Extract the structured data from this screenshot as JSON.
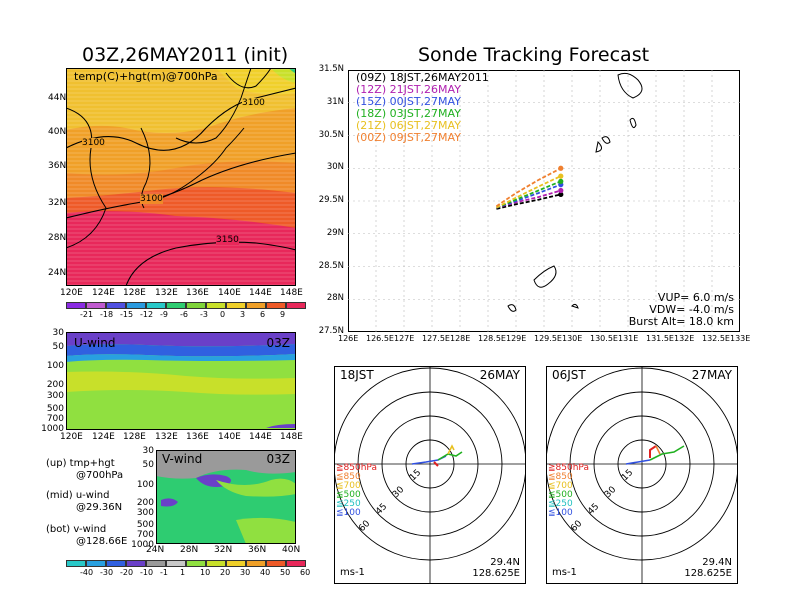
{
  "left_title": "03Z,26MAY2011 (init)",
  "right_title": "Sonde Tracking Forecast",
  "map_panel": {
    "label": "temp(C)+hgt(m)@700hPa",
    "contour_labels": [
      "3100",
      "3100",
      "3100",
      "3150"
    ],
    "lat_ticks": [
      "44N",
      "40N",
      "36N",
      "32N",
      "28N",
      "24N"
    ],
    "lon_ticks": [
      "120E",
      "124E",
      "128E",
      "132E",
      "136E",
      "140E",
      "144E",
      "148E"
    ],
    "colorbar": [
      "-21",
      "-18",
      "-15",
      "-12",
      "-9",
      "-6",
      "-3",
      "0",
      "3",
      "6",
      "9"
    ],
    "colorbar_colors": [
      "#8a2be2",
      "#c05ad0",
      "#5050e0",
      "#2a9adf",
      "#28c8c8",
      "#2ecc71",
      "#7fd43a",
      "#c8e02a",
      "#f0d02a",
      "#f0a028",
      "#ee5a28",
      "#e8285a"
    ]
  },
  "uwind_panel": {
    "label": "U-wind",
    "time": "03Z",
    "pressure_ticks": [
      "30",
      "50",
      "100",
      "200",
      "300",
      "500",
      "700",
      "1000"
    ],
    "lon_ticks": [
      "120E",
      "124E",
      "128E",
      "132E",
      "136E",
      "140E",
      "144E",
      "148E"
    ]
  },
  "vwind_panel": {
    "label": "V-wind",
    "time": "03Z",
    "pressure_ticks": [
      "30",
      "50",
      "100",
      "200",
      "300",
      "500",
      "700",
      "1000"
    ],
    "lat_ticks": [
      "24N",
      "28N",
      "32N",
      "36N",
      "40N"
    ]
  },
  "legend_notes": [
    {
      "line1": "(up) tmp+hgt",
      "line2": "@700hPa"
    },
    {
      "line1": "(mid) u-wind",
      "line2": "@29.36N"
    },
    {
      "line1": "(bot) v-wind",
      "line2": "@128.66E"
    }
  ],
  "wind_colorbar": [
    "-40",
    "-30",
    "-20",
    "-10",
    "-1",
    "1",
    "10",
    "20",
    "30",
    "40",
    "50",
    "60"
  ],
  "wind_colorbar_colors": [
    "#28c8c8",
    "#28a0e0",
    "#3060e0",
    "#6a40c8",
    "#9a9a9a",
    "#c8c8c8",
    "#90e040",
    "#c8e02a",
    "#f0d02a",
    "#f0a028",
    "#ee5a28",
    "#e8285a"
  ],
  "track_panel": {
    "lat_ticks": [
      "31.5N",
      "31N",
      "30.5N",
      "30N",
      "29.5N",
      "29N",
      "28.5N",
      "28N",
      "27.5N"
    ],
    "lon_ticks": [
      "126E",
      "126.5E",
      "127E",
      "127.5E",
      "128E",
      "128.5E",
      "129E",
      "129.5E",
      "130E",
      "130.5E",
      "131E",
      "131.5E",
      "132E",
      "132.5E",
      "133E"
    ],
    "legend": [
      {
        "label": "(09Z)  18JST,26MAY2011",
        "color": "#000000"
      },
      {
        "label": "(12Z)  21JST,26MAY",
        "color": "#b020b0"
      },
      {
        "label": "(15Z)  00JST,27MAY",
        "color": "#3050e0"
      },
      {
        "label": "(18Z)  03JST,27MAY",
        "color": "#20b020"
      },
      {
        "label": "(21Z)  06JST,27MAY",
        "color": "#e8c020"
      },
      {
        "label": "(00Z)  09JST,27MAY",
        "color": "#f08030"
      }
    ],
    "info": [
      "VUP= 6.0 m/s",
      "VDW= -4.0 m/s",
      "Burst Alt= 18.0 km"
    ]
  },
  "chart_data": {
    "type": "line",
    "title": "Sonde Tracking Forecast",
    "xlabel": "",
    "ylabel": "",
    "xlim": [
      126,
      133
    ],
    "ylim": [
      27.5,
      31.5
    ],
    "series": [
      {
        "name": "(09Z) 18JST,26MAY2011",
        "x": [
          128.65,
          129.0,
          129.4,
          129.8
        ],
        "y": [
          29.38,
          29.45,
          29.52,
          29.6
        ]
      },
      {
        "name": "(12Z) 21JST,26MAY",
        "x": [
          128.65,
          129.0,
          129.4,
          129.8
        ],
        "y": [
          29.4,
          29.48,
          29.56,
          29.66
        ]
      },
      {
        "name": "(15Z) 00JST,27MAY",
        "x": [
          128.65,
          129.0,
          129.4,
          129.8
        ],
        "y": [
          29.4,
          29.5,
          29.62,
          29.75
        ]
      },
      {
        "name": "(18Z) 03JST,27MAY",
        "x": [
          128.65,
          129.0,
          129.4,
          129.8
        ],
        "y": [
          29.4,
          29.52,
          29.66,
          29.8
        ]
      },
      {
        "name": "(21Z) 06JST,27MAY",
        "x": [
          128.65,
          129.0,
          129.4,
          129.8
        ],
        "y": [
          29.4,
          29.55,
          29.72,
          29.88
        ]
      },
      {
        "name": "(00Z) 09JST,27MAY",
        "x": [
          128.65,
          129.0,
          129.4,
          129.8
        ],
        "y": [
          29.42,
          29.62,
          29.82,
          30.0
        ]
      }
    ]
  },
  "hodo_left": {
    "time": "18JST",
    "date": "26MAY",
    "rings": [
      "15",
      "30",
      "45",
      "60"
    ],
    "units": "ms-1",
    "lat": "29.4N",
    "lon": "128.625E",
    "levels": [
      {
        "label": "≧850hPa",
        "color": "#e02020"
      },
      {
        "label": "≦850",
        "color": "#f08030"
      },
      {
        "label": "≦700",
        "color": "#e8c020"
      },
      {
        "label": "≦500",
        "color": "#20b020"
      },
      {
        "label": "≦250",
        "color": "#20c0c0"
      },
      {
        "label": "≦100",
        "color": "#3050e0"
      }
    ]
  },
  "hodo_right": {
    "time": "06JST",
    "date": "27MAY",
    "rings": [
      "15",
      "30",
      "45",
      "60"
    ],
    "units": "ms-1",
    "lat": "29.4N",
    "lon": "128.625E",
    "levels": [
      {
        "label": "≧850hPa",
        "color": "#e02020"
      },
      {
        "label": "≦850",
        "color": "#f08030"
      },
      {
        "label": "≦700",
        "color": "#e8c020"
      },
      {
        "label": "≦500",
        "color": "#20b020"
      },
      {
        "label": "≦250",
        "color": "#20c0c0"
      },
      {
        "label": "≦100",
        "color": "#3050e0"
      }
    ]
  }
}
